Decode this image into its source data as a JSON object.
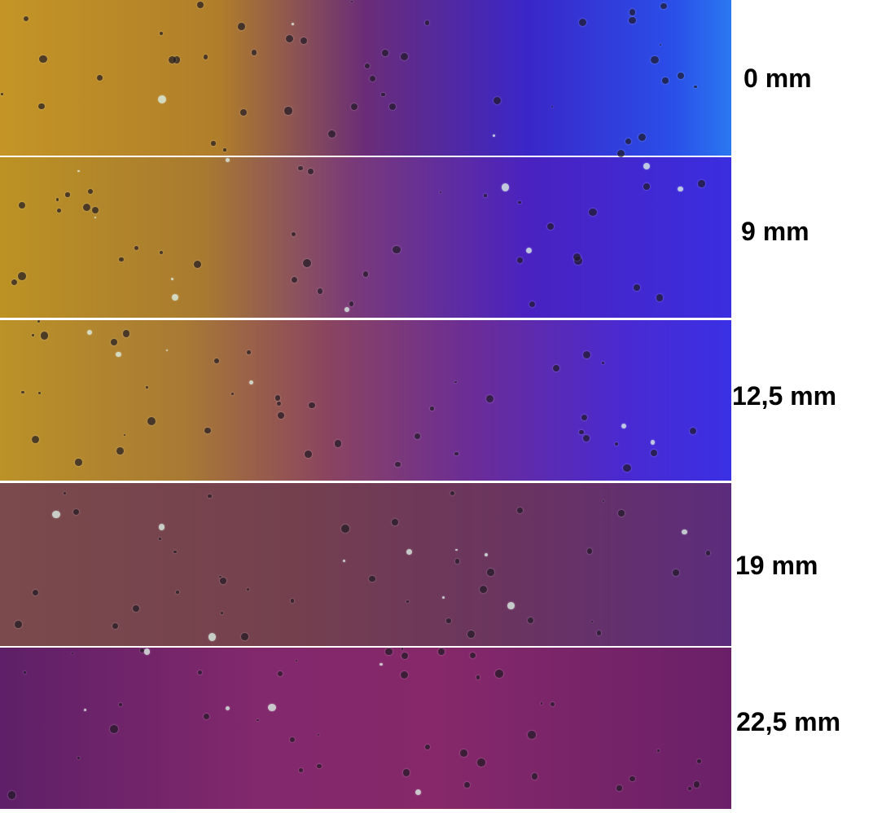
{
  "panels": [
    {
      "label": "0 mm"
    },
    {
      "label": "9 mm"
    },
    {
      "label": "12,5 mm"
    },
    {
      "label": "19 mm"
    },
    {
      "label": "22,5 mm"
    }
  ]
}
